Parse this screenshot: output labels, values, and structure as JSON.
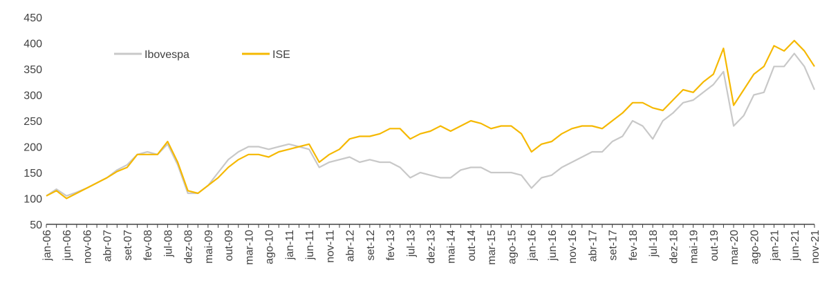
{
  "chart_data": {
    "type": "line",
    "categories": [
      "jan-06",
      null,
      "jun-06",
      null,
      "nov-06",
      null,
      "abr-07",
      null,
      "set-07",
      null,
      "fev-08",
      null,
      "jul-08",
      null,
      "dez-08",
      null,
      "mai-09",
      null,
      "out-09",
      null,
      "mar-10",
      null,
      "ago-10",
      null,
      "jan-11",
      null,
      "jun-11",
      null,
      "nov-11",
      null,
      "abr-12",
      null,
      "set-12",
      null,
      "fev-13",
      null,
      "jul-13",
      null,
      "dez-13",
      null,
      "mai-14",
      null,
      "out-14",
      null,
      "mar-15",
      null,
      "ago-15",
      null,
      "jan-16",
      null,
      "jun-16",
      null,
      "nov-16",
      null,
      "abr-17",
      null,
      "set-17",
      null,
      "fev-18",
      null,
      "jul-18",
      null,
      "dez-18",
      null,
      "mai-19",
      null,
      "out-19",
      null,
      "mar-20",
      null,
      "ago-20",
      null,
      "jan-21",
      null,
      "jun-21",
      null,
      "nov-21"
    ],
    "series": [
      {
        "name": "Ibovespa",
        "color": "#c8c8c8",
        "values": [
          105,
          118,
          105,
          112,
          120,
          130,
          140,
          155,
          165,
          185,
          190,
          185,
          205,
          165,
          110,
          110,
          125,
          150,
          175,
          190,
          200,
          200,
          195,
          200,
          205,
          200,
          195,
          160,
          170,
          175,
          180,
          170,
          175,
          170,
          170,
          160,
          140,
          150,
          145,
          140,
          140,
          155,
          160,
          160,
          150,
          150,
          150,
          145,
          120,
          140,
          145,
          160,
          170,
          180,
          190,
          190,
          210,
          220,
          250,
          240,
          215,
          250,
          265,
          285,
          290,
          305,
          320,
          345,
          240,
          260,
          300,
          305,
          355,
          355,
          380,
          355,
          310
        ]
      },
      {
        "name": "ISE",
        "color": "#f5b800",
        "values": [
          105,
          115,
          100,
          110,
          120,
          130,
          140,
          152,
          160,
          185,
          185,
          185,
          210,
          170,
          115,
          110,
          125,
          140,
          160,
          175,
          185,
          185,
          180,
          190,
          195,
          200,
          205,
          170,
          185,
          195,
          215,
          220,
          220,
          225,
          235,
          235,
          215,
          225,
          230,
          240,
          230,
          240,
          250,
          245,
          235,
          240,
          240,
          225,
          190,
          205,
          210,
          225,
          235,
          240,
          240,
          235,
          250,
          265,
          285,
          285,
          275,
          270,
          290,
          310,
          305,
          325,
          340,
          390,
          280,
          310,
          340,
          355,
          395,
          385,
          405,
          385,
          355
        ]
      }
    ],
    "ylim": [
      50,
      450
    ],
    "yticks": [
      50,
      100,
      150,
      200,
      250,
      300,
      350,
      400,
      450
    ],
    "grid": false,
    "legend": "upper left"
  }
}
